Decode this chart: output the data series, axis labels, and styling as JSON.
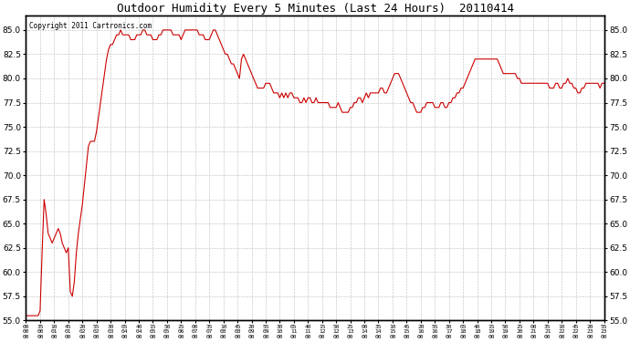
{
  "title": "Outdoor Humidity Every 5 Minutes (Last 24 Hours)  20110414",
  "copyright": "Copyright 2011 Cartronics.com",
  "line_color": "#cc0000",
  "ylim": [
    55.0,
    86.5
  ],
  "yticks": [
    55.0,
    57.5,
    60.0,
    62.5,
    65.0,
    67.5,
    70.0,
    72.5,
    75.0,
    77.5,
    80.0,
    82.5,
    85.0
  ],
  "x_labels": [
    "00:00",
    "00:35",
    "01:10",
    "01:45",
    "02:20",
    "02:55",
    "03:30",
    "04:05",
    "04:40",
    "05:15",
    "05:50",
    "06:25",
    "07:00",
    "07:35",
    "08:10",
    "08:45",
    "09:20",
    "09:55",
    "10:30",
    "11:05",
    "11:40",
    "12:15",
    "12:50",
    "13:25",
    "14:00",
    "14:35",
    "15:10",
    "15:45",
    "16:20",
    "16:55",
    "17:30",
    "18:05",
    "18:40",
    "19:15",
    "19:50",
    "20:25",
    "21:00",
    "21:35",
    "22:10",
    "22:45",
    "23:20",
    "23:55"
  ],
  "humidity": [
    55.5,
    55.5,
    55.5,
    55.5,
    55.5,
    55.5,
    55.5,
    56.0,
    62.0,
    67.5,
    66.0,
    64.0,
    63.5,
    63.0,
    63.5,
    64.0,
    64.5,
    64.0,
    63.0,
    62.5,
    62.0,
    62.5,
    58.0,
    57.5,
    59.0,
    62.0,
    64.0,
    65.5,
    67.0,
    69.0,
    71.0,
    73.0,
    73.5,
    73.5,
    73.5,
    74.5,
    76.0,
    77.5,
    79.0,
    80.5,
    82.0,
    83.0,
    83.5,
    83.5,
    84.0,
    84.5,
    84.5,
    85.0,
    84.5,
    84.5,
    84.5,
    84.5,
    84.0,
    84.0,
    84.0,
    84.5,
    84.5,
    84.5,
    85.0,
    85.0,
    84.5,
    84.5,
    84.5,
    84.0,
    84.0,
    84.0,
    84.5,
    84.5,
    85.0,
    85.0,
    85.0,
    85.0,
    85.0,
    84.5,
    84.5,
    84.5,
    84.5,
    84.0,
    84.5,
    85.0,
    85.0,
    85.0,
    85.0,
    85.0,
    85.0,
    85.0,
    84.5,
    84.5,
    84.5,
    84.0,
    84.0,
    84.0,
    84.5,
    85.0,
    85.0,
    84.5,
    84.0,
    83.5,
    83.0,
    82.5,
    82.5,
    82.0,
    81.5,
    81.5,
    81.0,
    80.5,
    80.0,
    82.0,
    82.5,
    82.0,
    81.5,
    81.0,
    80.5,
    80.0,
    79.5,
    79.0,
    79.0,
    79.0,
    79.0,
    79.5,
    79.5,
    79.5,
    79.0,
    78.5,
    78.5,
    78.5,
    78.0,
    78.5,
    78.0,
    78.5,
    78.0,
    78.5,
    78.5,
    78.0,
    78.0,
    78.0,
    77.5,
    77.5,
    78.0,
    77.5,
    78.0,
    78.0,
    77.5,
    77.5,
    78.0,
    77.5,
    77.5,
    77.5,
    77.5,
    77.5,
    77.5,
    77.0,
    77.0,
    77.0,
    77.0,
    77.5,
    77.0,
    76.5,
    76.5,
    76.5,
    76.5,
    77.0,
    77.0,
    77.5,
    77.5,
    78.0,
    78.0,
    77.5,
    78.0,
    78.5,
    78.0,
    78.5,
    78.5,
    78.5,
    78.5,
    78.5,
    79.0,
    79.0,
    78.5,
    78.5,
    79.0,
    79.5,
    80.0,
    80.5,
    80.5,
    80.5,
    80.0,
    79.5,
    79.0,
    78.5,
    78.0,
    77.5,
    77.5,
    77.0,
    76.5,
    76.5,
    76.5,
    77.0,
    77.0,
    77.5,
    77.5,
    77.5,
    77.5,
    77.0,
    77.0,
    77.0,
    77.5,
    77.5,
    77.0,
    77.0,
    77.5,
    77.5,
    78.0,
    78.0,
    78.5,
    78.5,
    79.0,
    79.0,
    79.5,
    80.0,
    80.5,
    81.0,
    81.5,
    82.0,
    82.0,
    82.0,
    82.0,
    82.0,
    82.0,
    82.0,
    82.0,
    82.0,
    82.0,
    82.0,
    82.0,
    81.5,
    81.0,
    80.5,
    80.5,
    80.5,
    80.5,
    80.5,
    80.5,
    80.5,
    80.0,
    80.0,
    79.5,
    79.5,
    79.5,
    79.5,
    79.5,
    79.5,
    79.5,
    79.5,
    79.5,
    79.5,
    79.5,
    79.5,
    79.5,
    79.5,
    79.0,
    79.0,
    79.0,
    79.5,
    79.5,
    79.0,
    79.0,
    79.5,
    79.5,
    80.0,
    79.5,
    79.5,
    79.0,
    79.0,
    78.5,
    78.5,
    79.0,
    79.0,
    79.5,
    79.5,
    79.5,
    79.5,
    79.5,
    79.5,
    79.5,
    79.0,
    79.5,
    79.5,
    79.5,
    79.5
  ]
}
